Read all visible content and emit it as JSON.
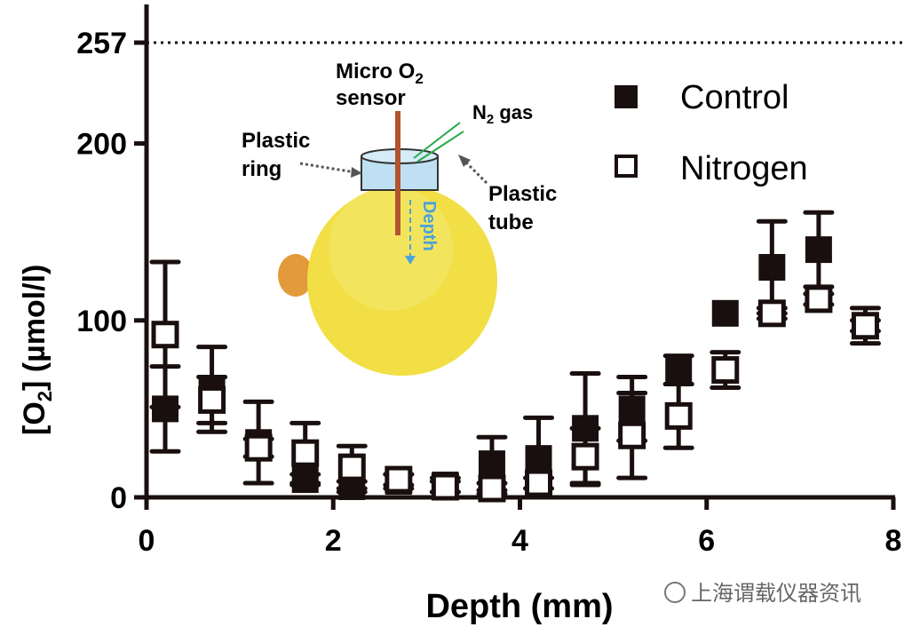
{
  "chart_data": {
    "type": "scatter",
    "xlabel": "Depth (mm)",
    "ylabel_parts": [
      "[O",
      "2",
      "] (µmol/l)"
    ],
    "xlim": [
      0,
      8
    ],
    "ylim": [
      0,
      257
    ],
    "x_ticks": [
      "0",
      "2",
      "4",
      "6",
      "8"
    ],
    "y_ticks": [
      "0",
      "100",
      "200",
      "257"
    ],
    "y_tick_values": [
      0,
      100,
      200,
      257
    ],
    "reference_line": {
      "y": 257,
      "style": "dotted"
    },
    "grid": false,
    "legend_position": "top-right",
    "series": [
      {
        "name": "Control",
        "marker": "filled-square",
        "x": [
          0.2,
          0.7,
          1.2,
          1.7,
          2.2,
          2.7,
          3.2,
          3.7,
          4.2,
          4.7,
          5.2,
          5.7,
          6.2,
          6.7,
          7.2,
          7.7
        ],
        "y": [
          50,
          61,
          31,
          10,
          6,
          9,
          7,
          19,
          22,
          39,
          50,
          72,
          104,
          130,
          140,
          97
        ],
        "error": [
          24,
          24,
          23,
          3,
          3,
          4,
          4,
          15,
          23,
          31,
          18,
          8,
          0,
          26,
          21,
          10
        ]
      },
      {
        "name": "Nitrogen",
        "marker": "open-square",
        "x": [
          0.2,
          0.7,
          1.2,
          1.7,
          2.2,
          2.7,
          3.2,
          3.7,
          4.2,
          4.7,
          5.2,
          5.7,
          6.2,
          6.7,
          7.2,
          7.7
        ],
        "y": [
          92,
          55,
          28,
          25,
          17,
          10,
          6,
          5,
          8,
          23,
          35,
          46,
          72,
          104,
          112,
          97
        ],
        "error": [
          41,
          13,
          5,
          17,
          12,
          3,
          3,
          3,
          3,
          16,
          24,
          18,
          10,
          3,
          3,
          3
        ]
      }
    ],
    "inset": {
      "labels": {
        "sensor_line1": "Micro O",
        "sensor_sub": "2",
        "sensor_line2": "sensor",
        "gas": "N",
        "gas_sub": "2",
        "gas_suffix": " gas",
        "ring_line1": "Plastic",
        "ring_line2": "ring",
        "tube_line1": "Plastic",
        "tube_line2": "tube",
        "depth": "Depth"
      }
    }
  },
  "watermark": "上海谓载仪器资讯"
}
